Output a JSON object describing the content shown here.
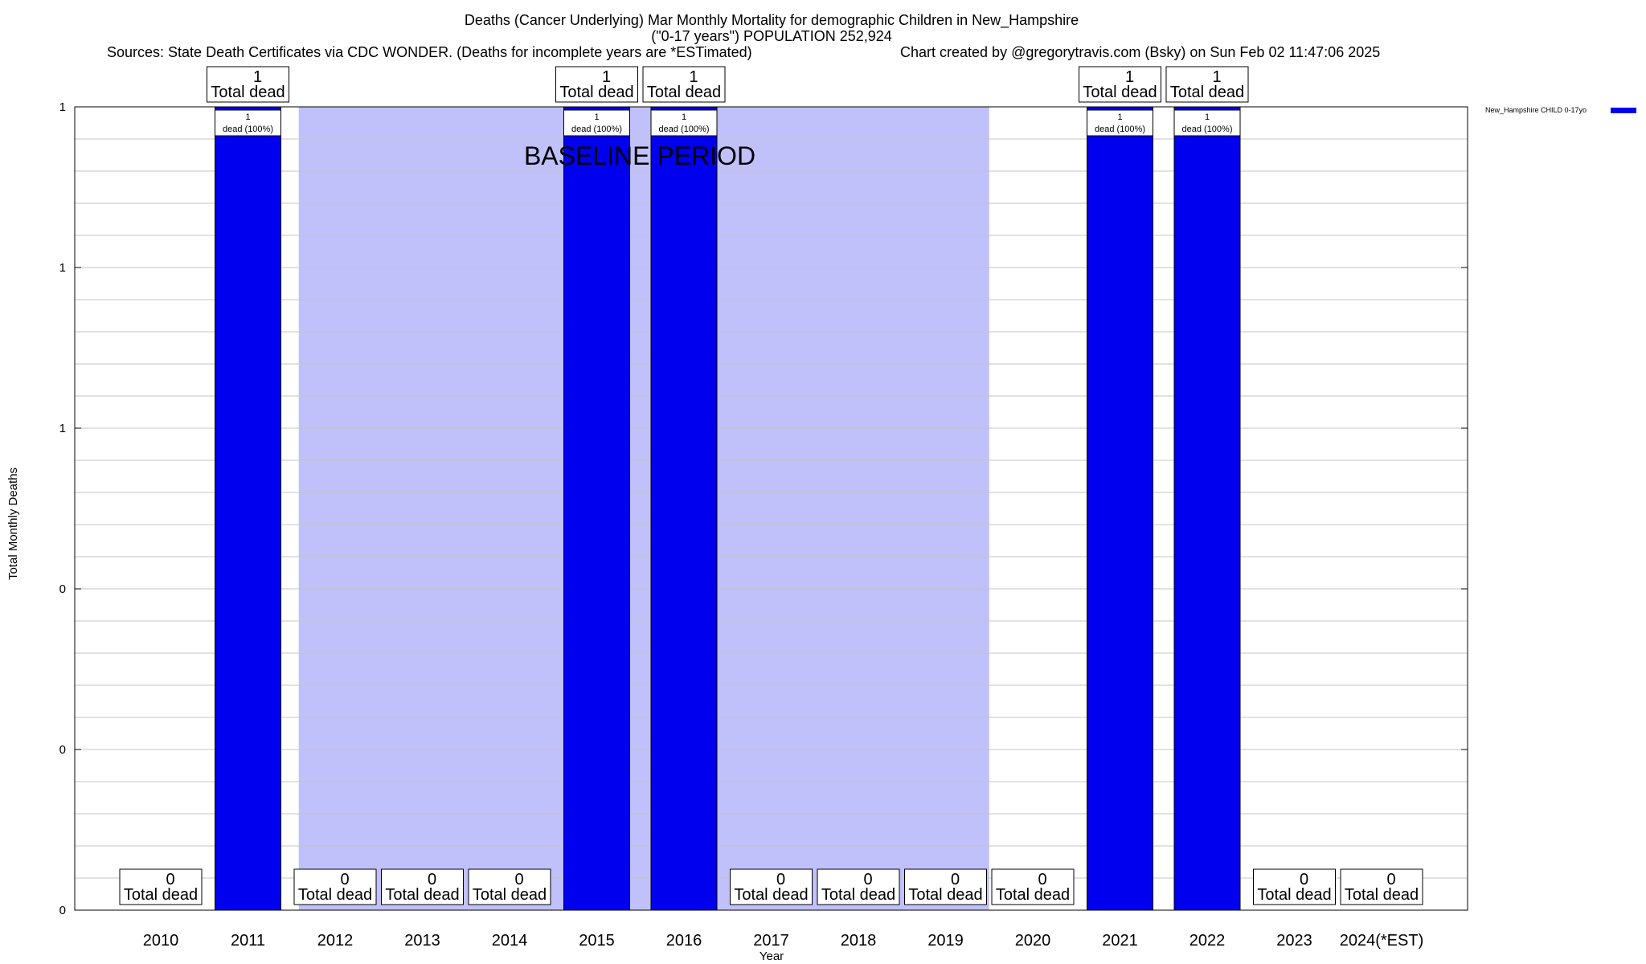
{
  "header": {
    "title_line1": "Deaths (Cancer Underlying) Mar Monthly Mortality for demographic Children in New_Hampshire",
    "title_line2": "(\"0-17 years\") POPULATION 252,924",
    "sources": "Sources: State Death Certificates via CDC WONDER. (Deaths for incomplete years are *ESTimated)",
    "credit": "Chart created by @gregorytravis.com (Bsky) on Sun Feb 02 11:47:06 2025"
  },
  "chart_data": {
    "type": "bar",
    "xlabel": "Year",
    "ylabel": "Total Monthly Deaths",
    "ylim": [
      0,
      1
    ],
    "y_ticks": [
      {
        "value": 0,
        "label": "0"
      },
      {
        "value": 0.2,
        "label": "0"
      },
      {
        "value": 0.4,
        "label": "0"
      },
      {
        "value": 0.6,
        "label": "1"
      },
      {
        "value": 0.8,
        "label": "1"
      },
      {
        "value": 1.0,
        "label": "1"
      }
    ],
    "categories": [
      "2010",
      "2011",
      "2012",
      "2013",
      "2014",
      "2015",
      "2016",
      "2017",
      "2018",
      "2019",
      "2020",
      "2021",
      "2022",
      "2023",
      "2024(*EST)"
    ],
    "series": [
      {
        "name": "New_Hampshire CHILD 0-17yo",
        "color": "#0000ee",
        "values": [
          0,
          1,
          0,
          0,
          0,
          1,
          1,
          0,
          0,
          0,
          0,
          1,
          1,
          0,
          0
        ]
      }
    ],
    "total_labels": [
      "0",
      "1",
      "0",
      "0",
      "0",
      "1",
      "1",
      "0",
      "0",
      "0",
      "0",
      "1",
      "1",
      "0",
      "0"
    ],
    "total_label_suffix": "Total dead",
    "bar_labels": [
      "",
      "1",
      "",
      "",
      "",
      "1",
      "1",
      "",
      "",
      "",
      "",
      "1",
      "1",
      "",
      ""
    ],
    "bar_label_suffix": "dead (100%)",
    "baseline_period": {
      "label": "BASELINE PERIOD",
      "start": "2012",
      "end": "2019",
      "color": "#c0c0fa"
    },
    "grid": true,
    "legend_position": "top-right"
  }
}
